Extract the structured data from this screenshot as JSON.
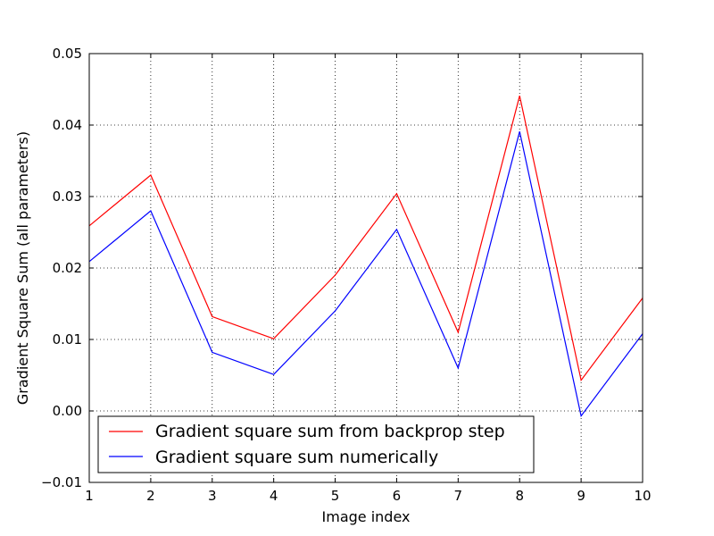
{
  "chart_data": {
    "type": "line",
    "x": [
      1,
      2,
      3,
      4,
      5,
      6,
      7,
      8,
      9,
      10
    ],
    "series": [
      {
        "name": "Gradient square sum from backprop step",
        "color": "#ff0000",
        "values": [
          0.0259,
          0.033,
          0.0132,
          0.0101,
          0.019,
          0.0304,
          0.011,
          0.0441,
          0.0043,
          0.0158
        ]
      },
      {
        "name": "Gradient square sum numerically",
        "color": "#0000ff",
        "values": [
          0.0209,
          0.028,
          0.0082,
          0.0051,
          0.014,
          0.0254,
          0.006,
          0.0391,
          -0.0007,
          0.0108
        ]
      }
    ],
    "xlabel": "Image index",
    "ylabel": "Gradient Square Sum (all parameters)",
    "xlim": [
      1,
      10
    ],
    "ylim": [
      -0.01,
      0.05
    ],
    "xticks": [
      "1",
      "2",
      "3",
      "4",
      "5",
      "6",
      "7",
      "8",
      "9",
      "10"
    ],
    "yticks": [
      "−0.01",
      "0.00",
      "0.01",
      "0.02",
      "0.03",
      "0.04",
      "0.05"
    ],
    "ytick_values": [
      -0.01,
      0.0,
      0.01,
      0.02,
      0.03,
      0.04,
      0.05
    ],
    "grid": true,
    "legend_position": "lower-left"
  }
}
